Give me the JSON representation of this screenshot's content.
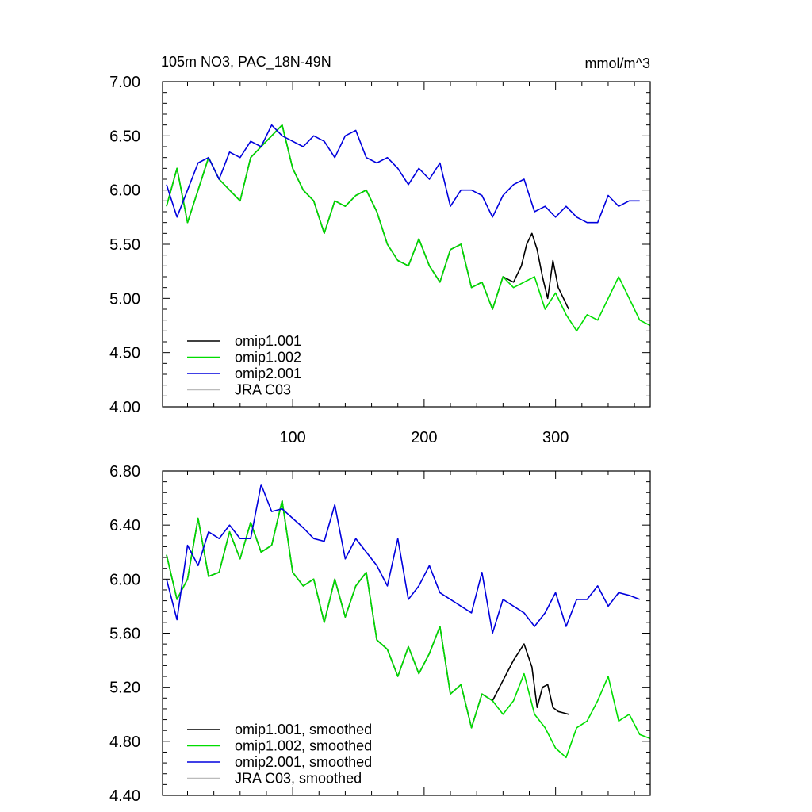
{
  "title": "105m NO3, PAC_18N-49N",
  "units": "mmol/m^3",
  "chart_data": [
    {
      "type": "line",
      "panel": "top",
      "xlim": [
        1,
        372
      ],
      "ylim": [
        4.0,
        7.0
      ],
      "xticks": [
        100,
        200,
        300
      ],
      "xtick_labels": [
        "100",
        "200",
        "300"
      ],
      "yticks": [
        4.0,
        4.5,
        5.0,
        5.5,
        6.0,
        6.5,
        7.0
      ],
      "ytick_labels": [
        "4.00",
        "4.50",
        "5.00",
        "5.50",
        "6.00",
        "6.50",
        "7.00"
      ],
      "legend_position": "bottom-left",
      "series": [
        {
          "name": "omip1.001",
          "color": "#000000",
          "x": [
            4,
            12,
            20,
            28,
            36,
            44,
            52,
            60,
            68,
            76,
            84,
            92,
            100,
            108,
            116,
            124,
            132,
            140,
            148,
            156,
            164,
            172,
            180,
            188,
            196,
            204,
            212,
            220,
            228,
            236,
            244,
            252,
            260,
            268,
            274,
            278,
            282,
            286,
            290,
            294,
            298,
            302,
            306,
            310
          ],
          "values": [
            5.85,
            6.2,
            5.7,
            6.0,
            6.3,
            6.1,
            6.0,
            5.9,
            6.3,
            6.4,
            6.5,
            6.6,
            6.2,
            6.0,
            5.9,
            5.6,
            5.9,
            5.85,
            5.95,
            6.0,
            5.8,
            5.5,
            5.35,
            5.3,
            5.55,
            5.3,
            5.15,
            5.45,
            5.5,
            5.1,
            5.15,
            4.9,
            5.2,
            5.15,
            5.3,
            5.5,
            5.6,
            5.45,
            5.2,
            5.0,
            5.35,
            5.1,
            5.0,
            4.9
          ]
        },
        {
          "name": "omip1.002",
          "color": "#00dd00",
          "x": [
            4,
            12,
            20,
            28,
            36,
            44,
            52,
            60,
            68,
            76,
            84,
            92,
            100,
            108,
            116,
            124,
            132,
            140,
            148,
            156,
            164,
            172,
            180,
            188,
            196,
            204,
            212,
            220,
            228,
            236,
            244,
            252,
            260,
            268,
            276,
            284,
            292,
            300,
            308,
            316,
            324,
            332,
            340,
            348,
            356,
            364,
            372
          ],
          "values": [
            5.85,
            6.2,
            5.7,
            6.0,
            6.3,
            6.1,
            6.0,
            5.9,
            6.3,
            6.4,
            6.5,
            6.6,
            6.2,
            6.0,
            5.9,
            5.6,
            5.9,
            5.85,
            5.95,
            6.0,
            5.8,
            5.5,
            5.35,
            5.3,
            5.55,
            5.3,
            5.15,
            5.45,
            5.5,
            5.1,
            5.15,
            4.9,
            5.2,
            5.1,
            5.15,
            5.2,
            4.9,
            5.05,
            4.85,
            4.7,
            4.85,
            4.8,
            5.0,
            5.2,
            5.0,
            4.8,
            4.75
          ]
        },
        {
          "name": "omip2.001",
          "color": "#0000dd",
          "x": [
            4,
            12,
            20,
            28,
            36,
            44,
            52,
            60,
            68,
            76,
            84,
            92,
            100,
            108,
            116,
            124,
            132,
            140,
            148,
            156,
            164,
            172,
            180,
            188,
            196,
            204,
            212,
            220,
            228,
            236,
            244,
            252,
            260,
            268,
            276,
            284,
            292,
            300,
            308,
            316,
            324,
            332,
            340,
            348,
            356,
            364
          ],
          "values": [
            6.05,
            5.75,
            6.0,
            6.25,
            6.3,
            6.1,
            6.35,
            6.3,
            6.45,
            6.4,
            6.6,
            6.5,
            6.45,
            6.4,
            6.5,
            6.45,
            6.3,
            6.5,
            6.55,
            6.3,
            6.25,
            6.3,
            6.2,
            6.05,
            6.2,
            6.1,
            6.25,
            5.85,
            6.0,
            6.0,
            5.95,
            5.75,
            5.95,
            6.05,
            6.1,
            5.8,
            5.85,
            5.75,
            5.85,
            5.75,
            5.7,
            5.7,
            5.95,
            5.85,
            5.9,
            5.9
          ]
        },
        {
          "name": "JRA C03",
          "color": "#bbbbbb",
          "x": [],
          "values": []
        }
      ]
    },
    {
      "type": "line",
      "panel": "bottom",
      "xlim": [
        1,
        372
      ],
      "ylim": [
        4.4,
        6.8
      ],
      "yticks": [
        4.4,
        4.8,
        5.2,
        5.6,
        6.0,
        6.4,
        6.8
      ],
      "ytick_labels": [
        "4.40",
        "4.80",
        "5.20",
        "5.60",
        "6.00",
        "6.40",
        "6.80"
      ],
      "legend_position": "bottom-left",
      "series": [
        {
          "name": "omip1.001, smoothed",
          "color": "#000000",
          "x": [
            4,
            12,
            20,
            28,
            36,
            44,
            52,
            60,
            68,
            76,
            84,
            92,
            100,
            108,
            116,
            124,
            132,
            140,
            148,
            156,
            164,
            172,
            180,
            188,
            196,
            204,
            212,
            220,
            228,
            236,
            244,
            252,
            260,
            268,
            276,
            282,
            286,
            290,
            294,
            298,
            302,
            306,
            310
          ],
          "values": [
            6.18,
            5.85,
            6.0,
            6.45,
            6.02,
            6.05,
            6.35,
            6.15,
            6.42,
            6.2,
            6.25,
            6.58,
            6.05,
            5.95,
            6.0,
            5.68,
            6.0,
            5.72,
            5.95,
            6.05,
            5.55,
            5.48,
            5.28,
            5.5,
            5.3,
            5.45,
            5.65,
            5.15,
            5.22,
            4.9,
            5.15,
            5.1,
            5.25,
            5.4,
            5.52,
            5.35,
            5.05,
            5.2,
            5.22,
            5.05,
            5.02,
            5.01,
            5.0
          ]
        },
        {
          "name": "omip1.002, smoothed",
          "color": "#00dd00",
          "x": [
            4,
            12,
            20,
            28,
            36,
            44,
            52,
            60,
            68,
            76,
            84,
            92,
            100,
            108,
            116,
            124,
            132,
            140,
            148,
            156,
            164,
            172,
            180,
            188,
            196,
            204,
            212,
            220,
            228,
            236,
            244,
            252,
            260,
            268,
            276,
            284,
            292,
            300,
            308,
            316,
            324,
            332,
            340,
            348,
            356,
            364,
            372
          ],
          "values": [
            6.18,
            5.85,
            6.0,
            6.45,
            6.02,
            6.05,
            6.35,
            6.15,
            6.42,
            6.2,
            6.25,
            6.58,
            6.05,
            5.95,
            6.0,
            5.68,
            6.0,
            5.72,
            5.95,
            6.05,
            5.55,
            5.48,
            5.28,
            5.5,
            5.3,
            5.45,
            5.65,
            5.15,
            5.22,
            4.9,
            5.15,
            5.1,
            5.0,
            5.1,
            5.3,
            5.0,
            4.9,
            4.75,
            4.68,
            4.9,
            4.95,
            5.1,
            5.28,
            4.95,
            5.0,
            4.85,
            4.82
          ]
        },
        {
          "name": "omip2.001, smoothed",
          "color": "#0000dd",
          "x": [
            4,
            12,
            20,
            28,
            36,
            44,
            52,
            60,
            68,
            76,
            84,
            92,
            100,
            108,
            116,
            124,
            132,
            140,
            148,
            156,
            164,
            172,
            180,
            188,
            196,
            204,
            212,
            220,
            228,
            236,
            244,
            252,
            260,
            268,
            276,
            284,
            292,
            300,
            308,
            316,
            324,
            332,
            340,
            348,
            356,
            364
          ],
          "values": [
            6.0,
            5.7,
            6.25,
            6.1,
            6.35,
            6.3,
            6.4,
            6.3,
            6.3,
            6.7,
            6.5,
            6.52,
            6.45,
            6.38,
            6.3,
            6.28,
            6.55,
            6.15,
            6.3,
            6.2,
            6.1,
            5.95,
            6.3,
            5.85,
            5.95,
            6.1,
            5.9,
            5.85,
            5.8,
            5.75,
            6.05,
            5.6,
            5.85,
            5.8,
            5.75,
            5.65,
            5.75,
            5.9,
            5.65,
            5.85,
            5.85,
            5.95,
            5.8,
            5.9,
            5.88,
            5.85
          ]
        },
        {
          "name": "JRA C03, smoothed",
          "color": "#bbbbbb",
          "x": [],
          "values": []
        }
      ]
    }
  ]
}
